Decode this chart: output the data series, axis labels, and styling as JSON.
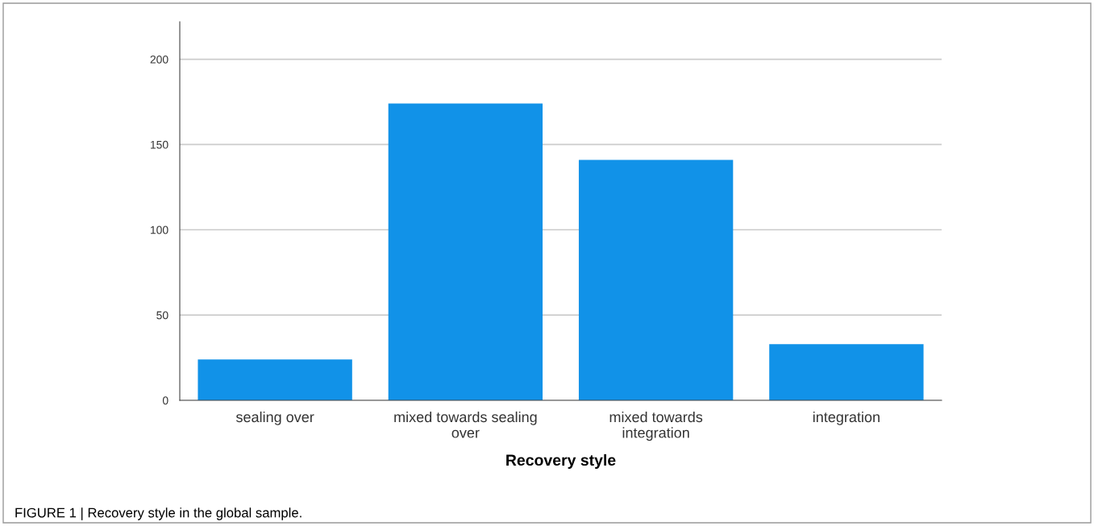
{
  "chart_data": {
    "type": "bar",
    "xlabel": "Recovery style",
    "categories": [
      "sealing over",
      "mixed towards sealing\nover",
      "mixed towards\nintegration",
      "integration"
    ],
    "values": [
      24,
      174,
      141,
      33
    ],
    "color": "#1192e8",
    "ylim": [
      0,
      222
    ],
    "yticks": [
      0,
      50,
      100,
      150,
      200
    ],
    "grid": "y",
    "annotations": [
      "FIGURE 1 | Recovery style in the global sample."
    ]
  }
}
